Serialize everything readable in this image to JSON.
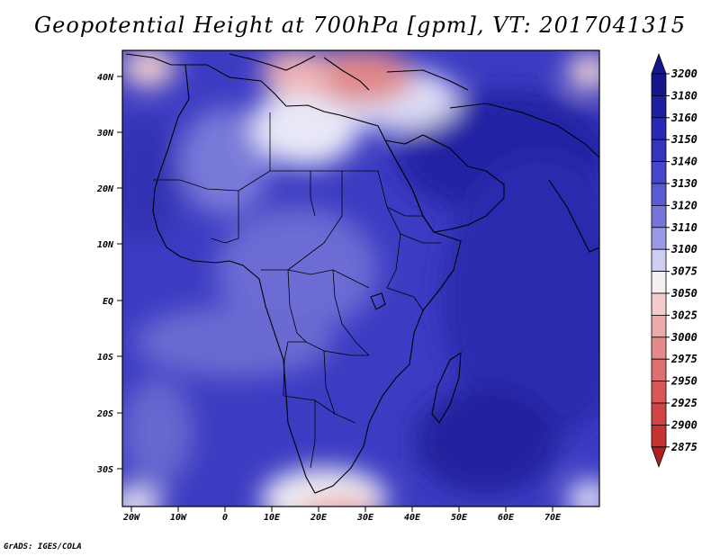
{
  "title": "Geopotential Height at 700hPa [gpm], VT: 2017041315",
  "credit": "GrADS: IGES/COLA",
  "map": {
    "lat_labels": [
      "40N",
      "30N",
      "20N",
      "10N",
      "EQ",
      "10S",
      "20S",
      "30S"
    ],
    "lon_labels": [
      "20W",
      "10W",
      "0",
      "10E",
      "20E",
      "30E",
      "40E",
      "50E",
      "60E",
      "70E"
    ]
  },
  "colorbar": {
    "levels": [
      "3200",
      "3180",
      "3160",
      "3150",
      "3140",
      "3130",
      "3120",
      "3110",
      "3100",
      "3075",
      "3050",
      "3025",
      "3000",
      "2975",
      "2950",
      "2925",
      "2900",
      "2875"
    ],
    "colors": {
      "c3200": "#16168c",
      "c3180": "#1e1ea0",
      "c3160": "#2828b4",
      "c3150": "#3434be",
      "c3140": "#4646c8",
      "c3130": "#5a5ad2",
      "c3120": "#7676da",
      "c3110": "#9a9ae6",
      "c3100": "#cfcff3",
      "c3075": "#f4f0f0",
      "c3050": "#f4cccc",
      "c3025": "#ecaaaa",
      "c3000": "#e48a8a",
      "c2975": "#dc7070",
      "c2950": "#d85858",
      "c2925": "#d04444",
      "c2900": "#c43232",
      "c2875": "#b02020"
    }
  }
}
